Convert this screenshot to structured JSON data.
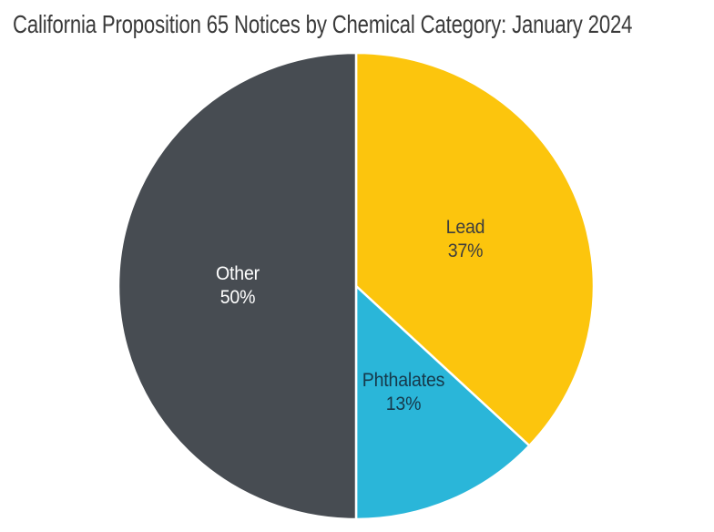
{
  "page": {
    "background_color": "#ffffff"
  },
  "chart_data": {
    "type": "pie",
    "title": "California Proposition 65 Notices by Chemical Category: January 2024",
    "title_color": "#3a3a3a",
    "start_at": "top",
    "direction": "clockwise",
    "legend": "none",
    "labels_inside": true,
    "separator_color": "#ffffff",
    "slices": [
      {
        "label": "Lead",
        "value": 37,
        "percent_label": "37%",
        "color": "#fcc50d",
        "label_color": "#3d3d3d"
      },
      {
        "label": "Phthalates",
        "value": 13,
        "percent_label": "13%",
        "color": "#2ab6d9",
        "label_color": "#16384a"
      },
      {
        "label": "Other",
        "value": 50,
        "percent_label": "50%",
        "color": "#474c52",
        "label_color": "#ffffff"
      }
    ]
  }
}
